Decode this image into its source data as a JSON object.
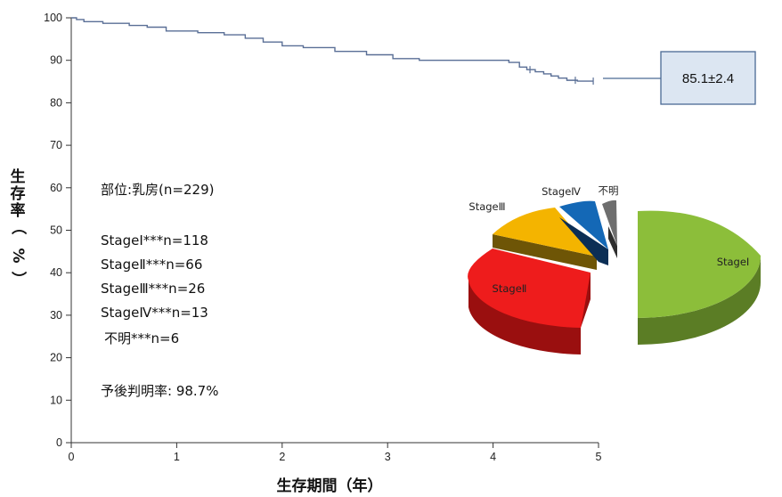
{
  "chart_data": [
    {
      "type": "line",
      "subtype": "kaplan-meier",
      "ylabel": "生存率（%）",
      "xlabel": "生存期間（年）",
      "xlim": [
        0,
        5
      ],
      "ylim": [
        0,
        100
      ],
      "x_ticks": [
        "0",
        "1",
        "2",
        "3",
        "4",
        "5"
      ],
      "y_ticks": [
        "0",
        "10",
        "20",
        "30",
        "40",
        "50",
        "60",
        "70",
        "80",
        "90",
        "100"
      ],
      "series": [
        {
          "color": "#5a6f96",
          "x": [
            0,
            0.05,
            0.12,
            0.3,
            0.55,
            0.72,
            0.9,
            1.2,
            1.45,
            1.65,
            1.82,
            2.0,
            2.2,
            2.5,
            2.8,
            3.05,
            3.3,
            3.6,
            3.95,
            4.15,
            4.25,
            4.32,
            4.4,
            4.48,
            4.55,
            4.62,
            4.7,
            4.8,
            4.95
          ],
          "y": [
            100,
            99.6,
            99.1,
            98.7,
            98.2,
            97.8,
            96.9,
            96.5,
            96.0,
            95.2,
            94.3,
            93.4,
            93.0,
            92.1,
            91.3,
            90.4,
            90.0,
            90.0,
            90.0,
            89.5,
            88.4,
            87.8,
            87.3,
            86.8,
            86.3,
            85.8,
            85.3,
            85.1,
            85.1
          ],
          "censor_x": [
            4.35,
            4.78,
            4.95
          ]
        }
      ],
      "callout": "85.1±2.4"
    },
    {
      "type": "pie",
      "categories": [
        "StageⅠ",
        "StageⅡ",
        "StageⅢ",
        "StageⅣ",
        "不明"
      ],
      "values": [
        118,
        66,
        26,
        13,
        6
      ],
      "colors": [
        "#8cbe3a",
        "#ee1c1c",
        "#f4b400",
        "#1468b6",
        "#5a5a5a"
      ]
    }
  ],
  "info": {
    "site": "部位:乳房(n=229)",
    "stage1": "StageⅠ***n=118",
    "stage2": "StageⅡ***n=66",
    "stage3": "StageⅢ***n=26",
    "stage4": "StageⅣ***n=13",
    "unknown": "不明***n=6",
    "rate": "予後判明率: 98.7%"
  },
  "pie_labels": {
    "stage1": "StageⅠ",
    "stage2": "StageⅡ",
    "stage3": "StageⅢ",
    "stage4": "StageⅣ",
    "unknown": "不明"
  }
}
